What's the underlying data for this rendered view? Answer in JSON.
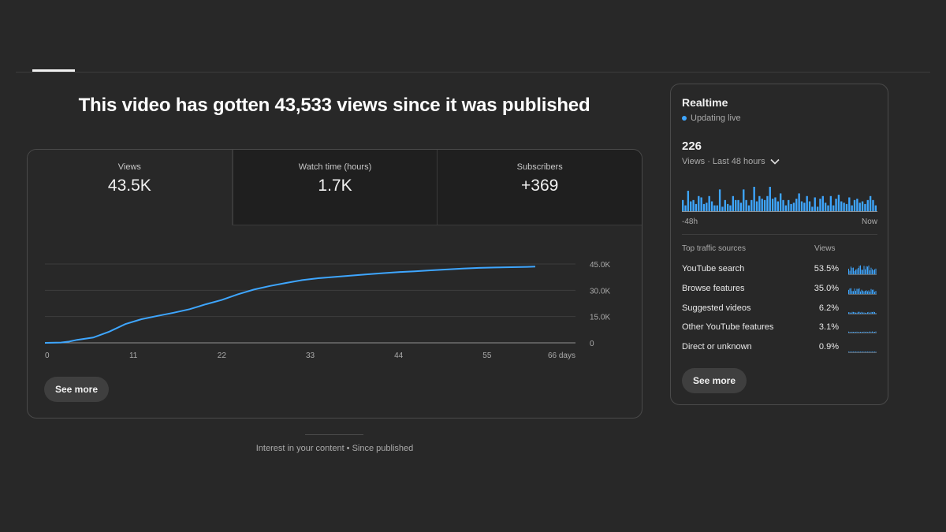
{
  "headline": "This video has gotten 43,533 views since it was published",
  "metrics": [
    {
      "label": "Views",
      "value": "43.5K"
    },
    {
      "label": "Watch time (hours)",
      "value": "1.7K"
    },
    {
      "label": "Subscribers",
      "value": "+369"
    }
  ],
  "see_more_label": "See more",
  "footer_note": "Interest in your content • Since published",
  "chart_data": {
    "type": "line",
    "x_unit": "days",
    "xlim": [
      0,
      66
    ],
    "ylim": [
      0,
      45000
    ],
    "x_ticks": [
      "0",
      "11",
      "22",
      "33",
      "44",
      "55",
      "66 days"
    ],
    "y_ticks": [
      "45.0K",
      "30.0K",
      "15.0K",
      "0"
    ],
    "grid": true,
    "color": "#3ea6ff",
    "x": [
      0,
      2,
      3,
      4,
      6,
      8,
      10,
      12,
      14,
      16,
      18,
      20,
      22,
      24,
      26,
      28,
      30,
      32,
      34,
      36,
      38,
      40,
      42,
      44,
      46,
      48,
      50,
      52,
      54,
      56,
      58,
      60,
      61
    ],
    "values": [
      0,
      200,
      700,
      1700,
      3000,
      6400,
      10700,
      13500,
      15400,
      17200,
      19200,
      22000,
      24500,
      27700,
      30400,
      32500,
      34200,
      35800,
      36900,
      37600,
      38400,
      39100,
      39800,
      40400,
      40800,
      41400,
      41900,
      42400,
      42800,
      43000,
      43200,
      43400,
      43500
    ]
  },
  "realtime": {
    "title": "Realtime",
    "status": "Updating live",
    "count": "226",
    "period_label": "Views · Last 48 hours",
    "axis_start": "-48h",
    "axis_end": "Now",
    "bar_color": "#3ea6ff",
    "bars": [
      9,
      5,
      16,
      8,
      9,
      6,
      12,
      11,
      6,
      7,
      12,
      8,
      5,
      5,
      17,
      4,
      9,
      6,
      5,
      12,
      9,
      9,
      7,
      17,
      9,
      5,
      9,
      19,
      8,
      12,
      10,
      9,
      12,
      19,
      10,
      11,
      8,
      14,
      9,
      5,
      9,
      6,
      7,
      10,
      14,
      8,
      7,
      12,
      8,
      4,
      11,
      4,
      10,
      12,
      7,
      5,
      12,
      5,
      10,
      13,
      8,
      7,
      6,
      11,
      5,
      9,
      10,
      7,
      8,
      6,
      9,
      12,
      9,
      5
    ],
    "traffic_header": {
      "label": "Top traffic sources",
      "views": "Views"
    },
    "traffic_sources": [
      {
        "name": "YouTube search",
        "pct": "53.5%",
        "level": 1.0
      },
      {
        "name": "Browse features",
        "pct": "35.0%",
        "level": 0.65
      },
      {
        "name": "Suggested videos",
        "pct": "6.2%",
        "level": 0.2
      },
      {
        "name": "Other YouTube features",
        "pct": "3.1%",
        "level": 0.12
      },
      {
        "name": "Direct or unknown",
        "pct": "0.9%",
        "level": 0.06
      }
    ],
    "see_more_label": "See more"
  }
}
